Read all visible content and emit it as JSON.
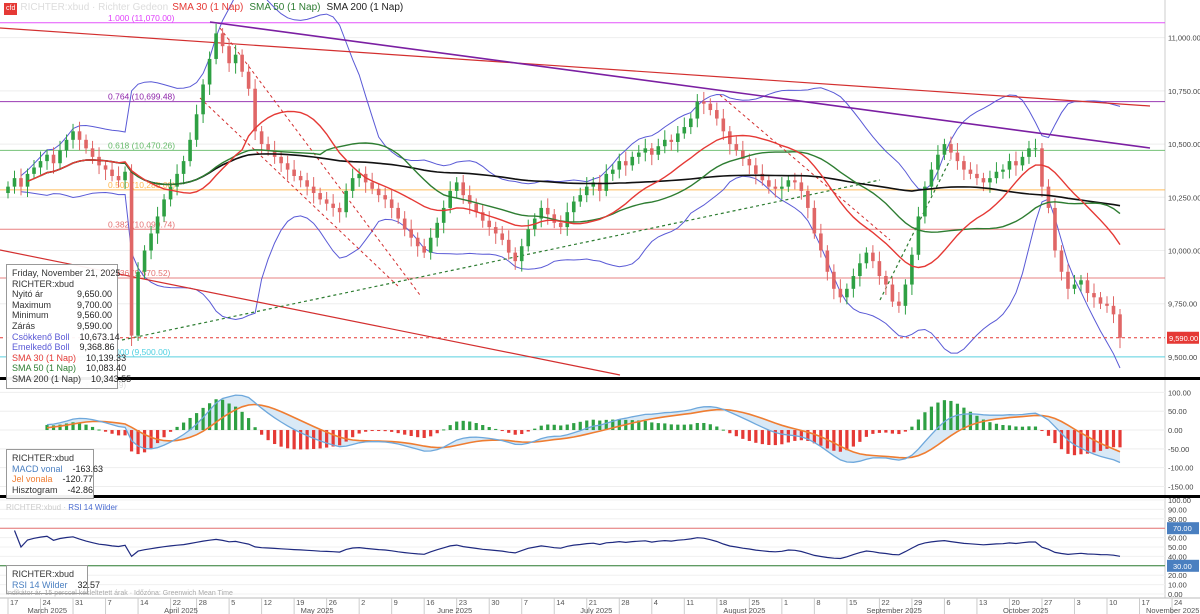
{
  "header": {
    "badge": "cfd",
    "ticker": "RICHTER:xbud · Richter Gedeon",
    "legend": [
      {
        "label": "SMA 30 (1 Nap)",
        "color": "#e53935"
      },
      {
        "label": "SMA 50 (1 Nap)",
        "color": "#2e7d32"
      },
      {
        "label": "SMA 200 (1 Nap)",
        "color": "#222222"
      }
    ]
  },
  "colors": {
    "up": "#2ea043",
    "down": "#e06666",
    "boll": "#5a5ad6",
    "sma30": "#e53935",
    "sma50": "#2e7d32",
    "sma200": "#111111",
    "fib_magenta": "#e040fb",
    "fib_purple": "#8e24aa",
    "fib_green": "#66bb6a",
    "fib_orange": "#ffb74d",
    "fib_red": "#e57373",
    "fib_cyan": "#4dd0e1",
    "trend_red": "#d32f2f",
    "trend_purple": "#7b1fa2",
    "trend_green": "#2e7d32",
    "macd": "#6ea8dc",
    "signal": "#ef7d31",
    "rsi": "#1f2a80",
    "price_tag": "#e53935"
  },
  "chart_data": [
    {
      "type": "candlestick",
      "symbol": "RICHTER:xbud",
      "y_axis": {
        "ticks": [
          9500,
          9750,
          10000,
          10250,
          10500,
          10750,
          11000
        ],
        "tick_labels": [
          "9,500.00",
          "9,750.00",
          "10,000.00",
          "10,250.00",
          "10,500.00",
          "10,750.00",
          "11,000.00"
        ],
        "range": [
          9415,
          11130
        ]
      },
      "last_price_label": "9,590.00",
      "last_price": 9590,
      "fibonacci": [
        {
          "ratio_label": "1.000 (11,070.00)",
          "value": 11070,
          "color_key": "fib_magenta"
        },
        {
          "ratio_label": "0.764 (10,699.48)",
          "value": 10699.48,
          "color_key": "fib_purple"
        },
        {
          "ratio_label": "0.618 (10,470.26)",
          "value": 10470.26,
          "color_key": "fib_green"
        },
        {
          "ratio_label": "0.500 (10,285.00)",
          "value": 10285,
          "color_key": "fib_orange"
        },
        {
          "ratio_label": "0.382 (10,099.74)",
          "value": 10099.74,
          "color_key": "fib_red"
        },
        {
          "ratio_label": "0.236 (9,870.52)",
          "value": 9870.52,
          "color_key": "fib_red"
        },
        {
          "ratio_label": "0.000 (9,500.00)",
          "value": 9500,
          "color_key": "fib_cyan"
        }
      ],
      "info_box": {
        "date": "Friday, November 21, 2025",
        "symbol": "RICHTER:xbud",
        "rows": [
          {
            "label": "Nyitó ár",
            "value": "9,650.00",
            "color": "#333333"
          },
          {
            "label": "Maximum",
            "value": "9,700.00",
            "color": "#333333"
          },
          {
            "label": "Minimum",
            "value": "9,560.00",
            "color": "#333333"
          },
          {
            "label": "Zárás",
            "value": "9,590.00",
            "color": "#333333"
          },
          {
            "label": "Csökkenő Boll",
            "value": "10,673.14",
            "color": "#5a5ad6"
          },
          {
            "label": "Emelkedő Boll",
            "value": "9,368.86",
            "color": "#5a5ad6"
          },
          {
            "label": "SMA 30 (1 Nap)",
            "value": "10,139.33",
            "color": "#e53935"
          },
          {
            "label": "SMA 50 (1 Nap)",
            "value": "10,083.40",
            "color": "#2e7d32"
          },
          {
            "label": "SMA 200 (1 Nap)",
            "value": "10,343.55",
            "color": "#333333"
          }
        ]
      },
      "closes": [
        10300,
        10340,
        10300,
        10360,
        10390,
        10420,
        10450,
        10410,
        10470,
        10520,
        10560,
        10520,
        10480,
        10440,
        10400,
        10380,
        10350,
        10330,
        10370,
        9600,
        9900,
        10000,
        10080,
        10160,
        10240,
        10300,
        10360,
        10420,
        10520,
        10640,
        10780,
        10900,
        11020,
        10960,
        10880,
        10920,
        10840,
        10760,
        10560,
        10500,
        10470,
        10440,
        10410,
        10380,
        10350,
        10330,
        10300,
        10270,
        10240,
        10220,
        10200,
        10180,
        10280,
        10340,
        10360,
        10320,
        10290,
        10260,
        10240,
        10200,
        10150,
        10100,
        10060,
        10020,
        9990,
        10060,
        10130,
        10200,
        10280,
        10320,
        10260,
        10220,
        10180,
        10140,
        10110,
        10080,
        10050,
        9990,
        9950,
        10020,
        10100,
        10150,
        10200,
        10170,
        10130,
        10110,
        10180,
        10230,
        10260,
        10300,
        10320,
        10280,
        10360,
        10380,
        10420,
        10400,
        10440,
        10460,
        10480,
        10450,
        10490,
        10520,
        10510,
        10550,
        10580,
        10620,
        10700,
        10690,
        10660,
        10620,
        10560,
        10500,
        10470,
        10430,
        10400,
        10360,
        10330,
        10300,
        10290,
        10300,
        10330,
        10320,
        10280,
        10200,
        10080,
        10000,
        9900,
        9820,
        9780,
        9820,
        9880,
        9940,
        9990,
        9950,
        9880,
        9840,
        9760,
        9740,
        9840,
        9980,
        10160,
        10300,
        10380,
        10450,
        10500,
        10460,
        10420,
        10380,
        10360,
        10340,
        10320,
        10340,
        10370,
        10380,
        10420,
        10400,
        10440,
        10480,
        10480,
        10300,
        10200,
        10000,
        9900,
        9820,
        9840,
        9860,
        9800,
        9780,
        9750,
        9740,
        9700,
        9590
      ],
      "x_axis": {
        "day_ticks": [
          {
            "label": "17",
            "i": 0
          },
          {
            "label": "24",
            "i": 5
          },
          {
            "label": "31",
            "i": 10
          },
          {
            "label": "7",
            "i": 15
          },
          {
            "label": "14",
            "i": 20
          },
          {
            "label": "22",
            "i": 25
          },
          {
            "label": "28",
            "i": 29
          },
          {
            "label": "5",
            "i": 34
          },
          {
            "label": "12",
            "i": 39
          },
          {
            "label": "19",
            "i": 44
          },
          {
            "label": "26",
            "i": 49
          },
          {
            "label": "2",
            "i": 54
          },
          {
            "label": "9",
            "i": 59
          },
          {
            "label": "16",
            "i": 64
          },
          {
            "label": "23",
            "i": 69
          },
          {
            "label": "30",
            "i": 74
          },
          {
            "label": "7",
            "i": 79
          },
          {
            "label": "14",
            "i": 84
          },
          {
            "label": "21",
            "i": 89
          },
          {
            "label": "28",
            "i": 94
          },
          {
            "label": "4",
            "i": 99
          },
          {
            "label": "11",
            "i": 104
          },
          {
            "label": "18",
            "i": 109
          },
          {
            "label": "25",
            "i": 114
          },
          {
            "label": "1",
            "i": 119
          },
          {
            "label": "8",
            "i": 124
          },
          {
            "label": "15",
            "i": 129
          },
          {
            "label": "22",
            "i": 134
          },
          {
            "label": "29",
            "i": 139
          },
          {
            "label": "6",
            "i": 144
          },
          {
            "label": "13",
            "i": 149
          },
          {
            "label": "20",
            "i": 154
          },
          {
            "label": "27",
            "i": 159
          },
          {
            "label": "3",
            "i": 164
          },
          {
            "label": "10",
            "i": 169
          },
          {
            "label": "17",
            "i": 174
          },
          {
            "label": "24",
            "i": 179
          },
          {
            "label": "Dece",
            "i": 184
          }
        ],
        "month_labels": [
          {
            "label": "March 2025",
            "i": 3
          },
          {
            "label": "April 2025",
            "i": 24
          },
          {
            "label": "May 2025",
            "i": 45
          },
          {
            "label": "June 2025",
            "i": 66
          },
          {
            "label": "July 2025",
            "i": 88
          },
          {
            "label": "August 2025",
            "i": 110
          },
          {
            "label": "September 2025",
            "i": 132
          },
          {
            "label": "October 2025",
            "i": 153
          },
          {
            "label": "November 2025",
            "i": 175
          }
        ]
      }
    },
    {
      "type": "macd",
      "y_axis": {
        "ticks": [
          100,
          50,
          0,
          -50,
          -100,
          -150
        ],
        "tick_labels": [
          "100.00",
          "50.00",
          "0.00",
          "-50.00",
          "-100.00",
          "-150.00"
        ],
        "range": [
          -170,
          125
        ]
      },
      "info_box": {
        "symbol": "RICHTER:xbud",
        "rows": [
          {
            "label": "MACD vonal",
            "value": "-163.63",
            "color": "#4a7fc0"
          },
          {
            "label": "Jel vonala",
            "value": "-120.77",
            "color": "#ef7d31"
          },
          {
            "label": "Hisztogram",
            "value": "-42.86",
            "color": "#333333"
          }
        ]
      }
    },
    {
      "type": "rsi",
      "y_axis": {
        "ticks": [
          100,
          90,
          80,
          70,
          60,
          50,
          40,
          30,
          20,
          10,
          0
        ],
        "range": [
          0,
          100
        ]
      },
      "overbought_label": "70.00",
      "oversold_label": "30.00",
      "info_box": {
        "symbol": "RICHTER:xbud",
        "rows": [
          {
            "label": "RSI 14 Wilder",
            "value": "32.57",
            "color": "#4a7fc0"
          }
        ]
      },
      "panel_title": "RSI 14 Wilder"
    }
  ],
  "footer_note": "Indikátor ár. 15 perccel késleltetett árak · Időzóna: Greenwich Mean Time"
}
